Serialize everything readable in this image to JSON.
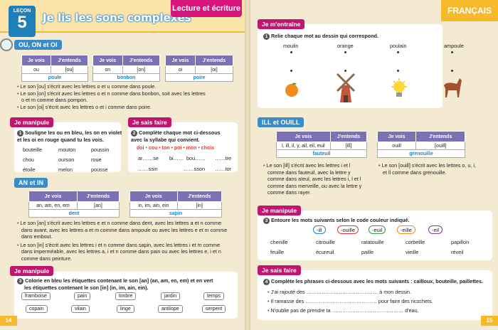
{
  "left": {
    "lecon": "LEÇON",
    "lecon_num": "5",
    "title": "Je lis les sons complexes",
    "tag": "Lecture et écriture",
    "sec1": "OU, ON et OI",
    "vois": "Je vois",
    "entends": "J'entends",
    "t1": [
      {
        "v": "ou",
        "e": "[ou]",
        "w": "poule"
      },
      {
        "v": "on",
        "e": "[on]",
        "w": "bonbon"
      },
      {
        "v": "oi",
        "e": "[oi]",
        "w": "poire"
      }
    ],
    "r1a": "Le son [ou] s'écrit avec les lettres o et u comme dans poule.",
    "r1b": "Le son [on] s'écrit avec les lettres o et n comme dans bonbon, soit avec les lettres",
    "r1b2": "o et m comme dans pompon.",
    "r1c": "Le son [oi] s'écrit avec les lettres o et i comme dans poire.",
    "manipule": "Je manipule",
    "saisfaire": "Je sais faire",
    "m1": "Souligne les ou en bleu, les on en violet",
    "m1b": "et les oi en rouge quand tu les vois.",
    "m1words": [
      "bouteille",
      "mouton",
      "poussin",
      "chou",
      "ourson",
      "roue",
      "étoile",
      "melon",
      "pousse"
    ],
    "s1": "Complète chaque mot ci-dessous",
    "s1b": "avec la syllabe qui convient.",
    "s1opts": "doi • cou • ton • poi • mon • choix",
    "s1words": [
      "ar……se",
      "bi……",
      "bou……",
      "……tre",
      "……ssin",
      "……sson",
      "……tor",
      "……"
    ],
    "sec2": "AN et IN",
    "t2a": {
      "v": "an, am, en, em",
      "e": "[an]",
      "w": "dent"
    },
    "t2b": {
      "v": "in, im, ain, ein",
      "e": "[in]",
      "w": "sapin"
    },
    "r2a1": "Le son [an] s'écrit avec les lettres e et n comme dans dent, avec les lettres a et n comme",
    "r2a2": "dans avant, avec les lettres a et m comme dans ampoule ou avec les lettres e et m comme",
    "r2a3": "dans embout.",
    "r2b1": "Le son [in] s'écrit avec les lettres i et n comme dans sapin, avec les lettres i et m comme",
    "r2b2": "dans imperméable, avec les lettres a, i et n comme dans pain ou avec les lettres e, i et n",
    "r2b3": "comme dans peinture.",
    "m2": "Colorie en bleu les étiquettes contenant le son [an] (an, am, en, em) et en vert",
    "m2b": "les étiquettes contenant le son [in] (in, im, ain, ein).",
    "m2words": [
      "framboise",
      "pain",
      "timbre",
      "jardin",
      "temps",
      "copain",
      "vilain",
      "linge",
      "antilope",
      "serpent"
    ],
    "pnum": "14"
  },
  "right": {
    "francais": "FRANÇAIS",
    "entraine": "Je m'entraîne",
    "e1": "Relie chaque mot au dessin qui correspond.",
    "e1words": [
      "moulin",
      "orange",
      "poulain",
      "ampoule"
    ],
    "sec3": "ILL et OUILL",
    "t3a": {
      "v": "l, ill, il, y, ail, eil, euil",
      "e": "[ill]",
      "w": "fauteuil"
    },
    "t3b": {
      "v": "ouill",
      "e": "[ouill]",
      "w": "grenouille"
    },
    "r3a1": "Le son [ill] s'écrit avec les lettres i et l",
    "r3a2": "comme dans fauteuil, avec la lettre y",
    "r3a3": "comme dans aïeul, avec les lettres i, l et l",
    "r3a4": "comme dans merveille, ou avec la lettre y",
    "r3a5": "comme dans rayer.",
    "r3b1": "Le son [ouill] s'écrit avec les lettres o, u, i,",
    "r3b2": "et ll comme dans grenouille.",
    "manipule": "Je manipule",
    "m3": "Entoure les mots suivants selon le code couleur indiqué.",
    "codes": [
      "-ill",
      "-ouille",
      "-euil",
      "-eille",
      "-eil"
    ],
    "m3words": [
      "chenille",
      "citrouille",
      "ratatouille",
      "corbeille",
      "papillon",
      "feuille",
      "écureuil",
      "paille",
      "vieille",
      "réveil"
    ],
    "saisfaire": "Je sais faire",
    "s3": "Complète les phrases ci-dessous avec les mots suivants : cailloux, bouteille, paillettes.",
    "s3a": "J'ai rajouté des …………………………………… à mon dessin.",
    "s3b": "Il ramasse des …………………………………… pour faire des ricochets.",
    "s3c": "N'oublie pas de prendre ta …………………………………… d'eau.",
    "pnum": "15"
  }
}
